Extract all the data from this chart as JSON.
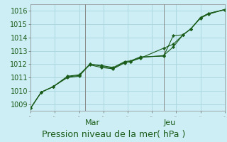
{
  "title": "Pression niveau de la mer( hPa )",
  "bg_color": "#cdeef4",
  "grid_color": "#aed8e0",
  "line_color": "#1a5c1a",
  "ylim": [
    1008.5,
    1016.5
  ],
  "yticks": [
    1009,
    1010,
    1011,
    1012,
    1013,
    1014,
    1015,
    1016
  ],
  "day_labels": [
    "Mar",
    "Jeu"
  ],
  "day_positions": [
    0.28,
    0.685
  ],
  "vline_color": "#888888",
  "series1_x": [
    0.0,
    0.055,
    0.115,
    0.19,
    0.25,
    0.305,
    0.365,
    0.425,
    0.485,
    0.515,
    0.565,
    0.685,
    0.735,
    0.785,
    0.825,
    0.875,
    0.915,
    1.0
  ],
  "series1_y": [
    1008.7,
    1009.9,
    1010.3,
    1011.0,
    1011.1,
    1012.0,
    1011.85,
    1011.7,
    1012.15,
    1012.2,
    1012.5,
    1012.65,
    1013.3,
    1014.2,
    1014.65,
    1015.5,
    1015.8,
    1016.1
  ],
  "series2_x": [
    0.0,
    0.055,
    0.115,
    0.19,
    0.25,
    0.305,
    0.365,
    0.425,
    0.485,
    0.515,
    0.565,
    0.685,
    0.735,
    0.785,
    0.825,
    0.875,
    0.915,
    1.0
  ],
  "series2_y": [
    1008.7,
    1009.9,
    1010.3,
    1011.05,
    1011.15,
    1011.95,
    1011.75,
    1011.65,
    1012.1,
    1012.2,
    1012.45,
    1013.2,
    1013.5,
    1014.2,
    1014.65,
    1015.45,
    1015.75,
    1016.1
  ],
  "series3_x": [
    0.0,
    0.055,
    0.115,
    0.19,
    0.25,
    0.305,
    0.365,
    0.425,
    0.485,
    0.515,
    0.565,
    0.685,
    0.735,
    0.785,
    0.825,
    0.875,
    0.915,
    1.0
  ],
  "series3_y": [
    1008.7,
    1009.9,
    1010.3,
    1011.1,
    1011.2,
    1012.0,
    1011.9,
    1011.75,
    1012.2,
    1012.25,
    1012.55,
    1012.6,
    1014.15,
    1014.2,
    1014.65,
    1015.5,
    1015.8,
    1016.1
  ],
  "marker": "D",
  "marker_size": 2.2,
  "line_width": 0.8,
  "label_fontsize": 8,
  "ytick_fontsize": 7,
  "xtick_fontsize": 8,
  "title_fontsize": 9
}
